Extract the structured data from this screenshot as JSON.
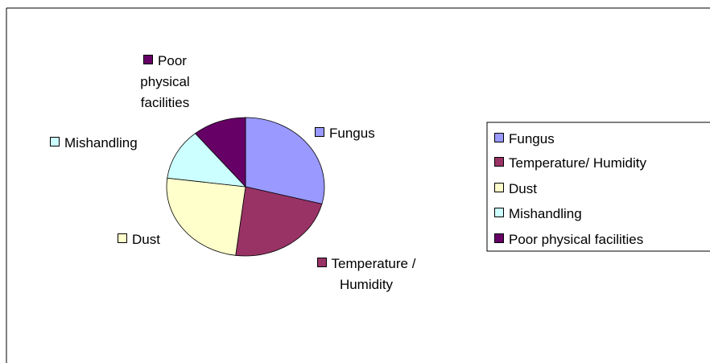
{
  "chart_data": {
    "type": "pie",
    "categories": [
      "Fungus",
      "Temperature/ Humidity",
      "Dust",
      "Mishandling",
      "Poor physical facilities"
    ],
    "slice_labels": [
      "Fungus",
      "Temperature / Humidity",
      "Dust",
      "Mishandling",
      "Poor physical facilities"
    ],
    "values": [
      29,
      23,
      25,
      12,
      11
    ],
    "colors": [
      "#9999ff",
      "#993366",
      "#ffffcc",
      "#ccffff",
      "#660066"
    ],
    "legend": "right"
  }
}
